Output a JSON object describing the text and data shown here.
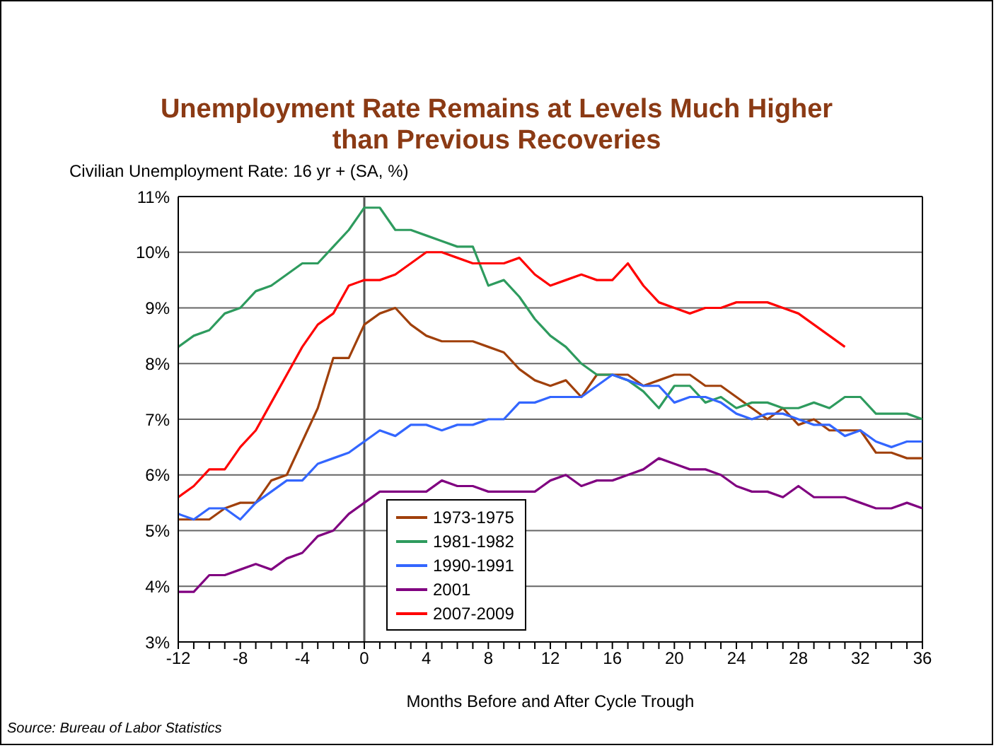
{
  "chart_data": {
    "type": "line",
    "title": "Unemployment Rate Remains at Levels Much Higher than Previous Recoveries",
    "ylabel": "Civilian Unemployment Rate: 16 yr + (SA, %)",
    "xlabel": "Months Before and After Cycle Trough",
    "annotations": [
      "Source: Bureau of Labor Statistics"
    ],
    "x": [
      -12,
      -11,
      -10,
      -9,
      -8,
      -7,
      -6,
      -5,
      -4,
      -3,
      -2,
      -1,
      0,
      1,
      2,
      3,
      4,
      5,
      6,
      7,
      8,
      9,
      10,
      11,
      12,
      13,
      14,
      15,
      16,
      17,
      18,
      19,
      20,
      21,
      22,
      23,
      24,
      25,
      26,
      27,
      28,
      29,
      30,
      31,
      32,
      33,
      34,
      35,
      36
    ],
    "series": [
      {
        "name": "1973-1975",
        "color": "#a0400b",
        "values": [
          5.2,
          5.2,
          5.2,
          5.4,
          5.5,
          5.5,
          5.9,
          6.0,
          6.6,
          7.2,
          8.1,
          8.1,
          8.7,
          8.9,
          9.0,
          8.7,
          8.5,
          8.4,
          8.4,
          8.4,
          8.3,
          8.2,
          7.9,
          7.7,
          7.6,
          7.7,
          7.4,
          7.8,
          7.8,
          7.8,
          7.6,
          7.7,
          7.8,
          7.8,
          7.6,
          7.6,
          7.4,
          7.2,
          7.0,
          7.2,
          6.9,
          7.0,
          6.8,
          6.8,
          6.8,
          6.4,
          6.4,
          6.3,
          6.3
        ]
      },
      {
        "name": "1981-1982",
        "color": "#2e9b5e",
        "values": [
          8.3,
          8.5,
          8.6,
          8.9,
          9.0,
          9.3,
          9.4,
          9.6,
          9.8,
          9.8,
          10.1,
          10.4,
          10.8,
          10.8,
          10.4,
          10.4,
          10.3,
          10.2,
          10.1,
          10.1,
          9.4,
          9.5,
          9.2,
          8.8,
          8.5,
          8.3,
          8.0,
          7.8,
          7.8,
          7.7,
          7.5,
          7.2,
          7.6,
          7.6,
          7.3,
          7.4,
          7.2,
          7.3,
          7.3,
          7.2,
          7.2,
          7.3,
          7.2,
          7.4,
          7.4,
          7.1,
          7.1,
          7.1,
          7.0
        ]
      },
      {
        "name": "1990-1991",
        "color": "#3366ff",
        "values": [
          5.3,
          5.2,
          5.4,
          5.4,
          5.2,
          5.5,
          5.7,
          5.9,
          5.9,
          6.2,
          6.3,
          6.4,
          6.6,
          6.8,
          6.7,
          6.9,
          6.9,
          6.8,
          6.9,
          6.9,
          7.0,
          7.0,
          7.3,
          7.3,
          7.4,
          7.4,
          7.4,
          7.6,
          7.8,
          7.7,
          7.6,
          7.6,
          7.3,
          7.4,
          7.4,
          7.3,
          7.1,
          7.0,
          7.1,
          7.1,
          7.0,
          6.9,
          6.9,
          6.7,
          6.8,
          6.6,
          6.5,
          6.6,
          6.6
        ]
      },
      {
        "name": "2001",
        "color": "#800080",
        "values": [
          3.9,
          3.9,
          4.2,
          4.2,
          4.3,
          4.4,
          4.3,
          4.5,
          4.6,
          4.9,
          5.0,
          5.3,
          5.5,
          5.7,
          5.7,
          5.7,
          5.7,
          5.9,
          5.8,
          5.8,
          5.7,
          5.7,
          5.7,
          5.7,
          5.9,
          6.0,
          5.8,
          5.9,
          5.9,
          6.0,
          6.1,
          6.3,
          6.2,
          6.1,
          6.1,
          6.0,
          5.8,
          5.7,
          5.7,
          5.6,
          5.8,
          5.6,
          5.6,
          5.6,
          5.5,
          5.4,
          5.4,
          5.5,
          5.4
        ]
      },
      {
        "name": "2007-2009",
        "color": "#ff0000",
        "values": [
          5.6,
          5.8,
          6.1,
          6.1,
          6.5,
          6.8,
          7.3,
          7.8,
          8.3,
          8.7,
          8.9,
          9.4,
          9.5,
          9.5,
          9.6,
          9.8,
          10.0,
          10.0,
          9.9,
          9.8,
          9.8,
          9.8,
          9.9,
          9.6,
          9.4,
          9.5,
          9.6,
          9.5,
          9.5,
          9.8,
          9.4,
          9.1,
          9.0,
          8.9,
          9.0,
          9.0,
          9.1,
          9.1,
          9.1,
          9.0,
          8.9,
          8.7,
          8.5,
          8.3,
          null,
          null,
          null,
          null,
          null
        ]
      }
    ],
    "xlim": [
      -12,
      36
    ],
    "xticks": [
      -12,
      {
        "value": -11,
        "label": null
      },
      {
        "value": -10,
        "label": null
      },
      {
        "value": -9,
        "label": null
      },
      -8,
      {
        "value": -7,
        "label": null
      },
      {
        "value": -6,
        "label": null
      },
      {
        "value": -5,
        "label": null
      },
      -4,
      {
        "value": -3,
        "label": null
      },
      {
        "value": -2,
        "label": null
      },
      {
        "value": -1,
        "label": null
      },
      0,
      {
        "value": 1,
        "label": null
      },
      {
        "value": 2,
        "label": null
      },
      {
        "value": 3,
        "label": null
      },
      4,
      {
        "value": 5,
        "label": null
      },
      {
        "value": 6,
        "label": null
      },
      {
        "value": 7,
        "label": null
      },
      8,
      {
        "value": 9,
        "label": null
      },
      {
        "value": 10,
        "label": null
      },
      {
        "value": 11,
        "label": null
      },
      12,
      {
        "value": 13,
        "label": null
      },
      {
        "value": 14,
        "label": null
      },
      {
        "value": 15,
        "label": null
      },
      16,
      {
        "value": 17,
        "label": null
      },
      {
        "value": 18,
        "label": null
      },
      {
        "value": 19,
        "label": null
      },
      20,
      {
        "value": 21,
        "label": null
      },
      {
        "value": 22,
        "label": null
      },
      {
        "value": 23,
        "label": null
      },
      24,
      {
        "value": 25,
        "label": null
      },
      {
        "value": 26,
        "label": null
      },
      {
        "value": 27,
        "label": null
      },
      28,
      {
        "value": 29,
        "label": null
      },
      {
        "value": 30,
        "label": null
      },
      {
        "value": 31,
        "label": null
      },
      32,
      {
        "value": 33,
        "label": null
      },
      {
        "value": 34,
        "label": null
      },
      {
        "value": 35,
        "label": null
      },
      36
    ],
    "ylim": [
      3,
      11
    ],
    "yticks": [
      {
        "value": 3,
        "label": "3%"
      },
      {
        "value": 4,
        "label": "4%"
      },
      {
        "value": 5,
        "label": "5%"
      },
      {
        "value": 6,
        "label": "6%"
      },
      {
        "value": 7,
        "label": "7%"
      },
      {
        "value": 8,
        "label": "8%"
      },
      {
        "value": 9,
        "label": "9%"
      },
      {
        "value": 10,
        "label": "10%"
      },
      {
        "value": 11,
        "label": "11%"
      }
    ],
    "ref_lines": [
      {
        "axis": "x",
        "value": 0,
        "color": "#555555"
      }
    ],
    "grid": "y",
    "legend": "bottom",
    "marker": "none",
    "line_style": "solid"
  }
}
